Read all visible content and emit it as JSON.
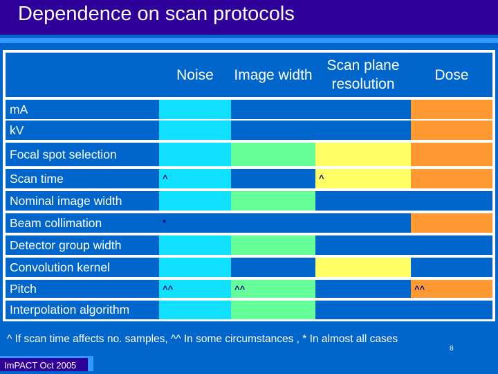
{
  "slide": {
    "title": "Dependence on scan protocols",
    "footnote": "^ If scan time affects no. samples,  ^^ In some circumstances , * In almost all cases",
    "page_number": "8",
    "footer": "ImPACT Oct 2005"
  },
  "colors": {
    "noise": "#11E0FF",
    "blue": "#0066CC",
    "green": "#66FF99",
    "yellow": "#FFFF66",
    "orange": "#FF9933",
    "mark_text": "#000080"
  },
  "table": {
    "columns": [
      "Noise",
      "Image width",
      "Scan plane resolution",
      "Dose"
    ],
    "rows": [
      {
        "label": "mA",
        "cells": [
          {
            "fill": "noise",
            "mark": ""
          },
          {
            "fill": "blue",
            "mark": ""
          },
          {
            "fill": "blue",
            "mark": ""
          },
          {
            "fill": "orange",
            "mark": ""
          }
        ]
      },
      {
        "label": "kV",
        "cells": [
          {
            "fill": "noise",
            "mark": ""
          },
          {
            "fill": "blue",
            "mark": ""
          },
          {
            "fill": "blue",
            "mark": ""
          },
          {
            "fill": "orange",
            "mark": ""
          }
        ]
      },
      {
        "label": "Focal spot selection",
        "cells": [
          {
            "fill": "noise",
            "mark": ""
          },
          {
            "fill": "green",
            "mark": ""
          },
          {
            "fill": "yellow",
            "mark": ""
          },
          {
            "fill": "orange",
            "mark": ""
          }
        ]
      },
      {
        "label": "Scan time",
        "cells": [
          {
            "fill": "noise",
            "mark": "^"
          },
          {
            "fill": "blue",
            "mark": ""
          },
          {
            "fill": "yellow",
            "mark": "^"
          },
          {
            "fill": "orange",
            "mark": ""
          }
        ]
      },
      {
        "label": "Nominal image width",
        "cells": [
          {
            "fill": "noise",
            "mark": ""
          },
          {
            "fill": "green",
            "mark": ""
          },
          {
            "fill": "blue",
            "mark": ""
          },
          {
            "fill": "blue",
            "mark": ""
          }
        ]
      },
      {
        "label": "Beam collimation",
        "cells": [
          {
            "fill": "blue",
            "mark": "*"
          },
          {
            "fill": "blue",
            "mark": ""
          },
          {
            "fill": "blue",
            "mark": ""
          },
          {
            "fill": "orange",
            "mark": ""
          }
        ]
      },
      {
        "label": "Detector group width",
        "cells": [
          {
            "fill": "noise",
            "mark": ""
          },
          {
            "fill": "green",
            "mark": ""
          },
          {
            "fill": "blue",
            "mark": ""
          },
          {
            "fill": "blue",
            "mark": ""
          }
        ]
      },
      {
        "label": "Convolution kernel",
        "cells": [
          {
            "fill": "noise",
            "mark": ""
          },
          {
            "fill": "blue",
            "mark": ""
          },
          {
            "fill": "yellow",
            "mark": ""
          },
          {
            "fill": "blue",
            "mark": ""
          }
        ]
      },
      {
        "label": "Pitch",
        "cells": [
          {
            "fill": "noise",
            "mark": "^^"
          },
          {
            "fill": "green",
            "mark": "^^"
          },
          {
            "fill": "blue",
            "mark": ""
          },
          {
            "fill": "orange",
            "mark": "^^"
          }
        ]
      },
      {
        "label": "Interpolation algorithm",
        "cells": [
          {
            "fill": "noise",
            "mark": ""
          },
          {
            "fill": "green",
            "mark": ""
          },
          {
            "fill": "blue",
            "mark": ""
          },
          {
            "fill": "blue",
            "mark": ""
          }
        ]
      }
    ]
  }
}
